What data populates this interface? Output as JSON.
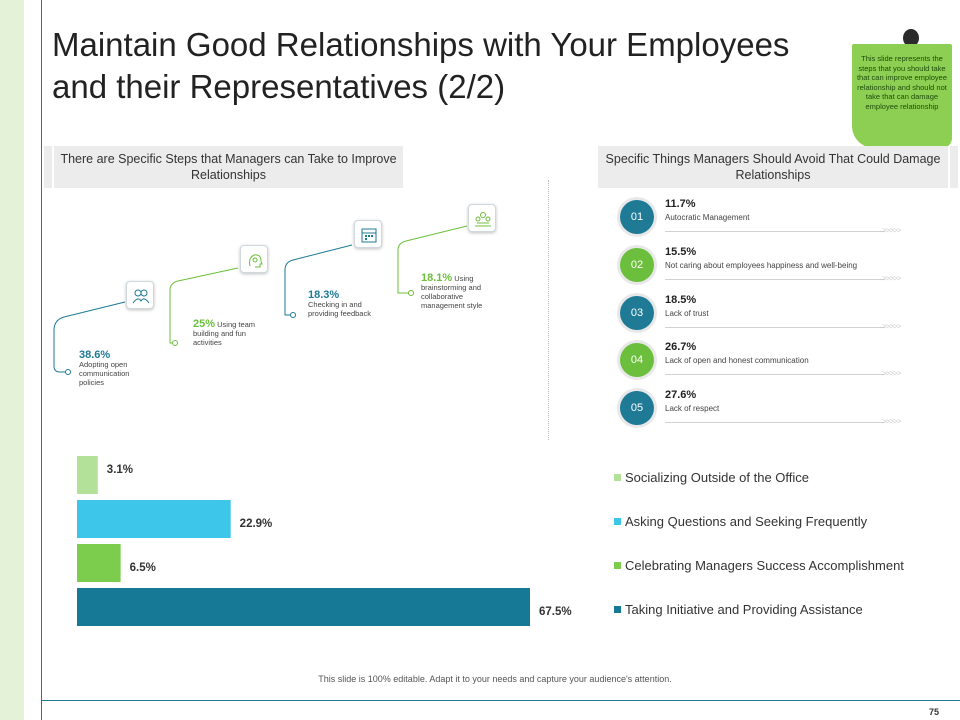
{
  "title": {
    "line1": "Maintain Good Relationships with Your Employees",
    "line2": "and their Representatives  (2/2)"
  },
  "note": {
    "text": "This slide represents the steps that you should take that can improve employee relationship and should not take that can damage employee relationship"
  },
  "left_panel": {
    "header": "There are Specific Steps that Managers can Take to Improve Relationships",
    "steps": [
      {
        "pct": "38.6%",
        "text": "Adopting open communication policies",
        "icon": "team-icon",
        "color": "#1e7a95"
      },
      {
        "pct": "25%",
        "text": "Using team building and fun activities",
        "icon": "puzzle-head-icon",
        "color": "#6cbf3c"
      },
      {
        "pct": "18.3%",
        "text": "Checking in and providing feedback",
        "icon": "calendar-icon",
        "color": "#1e7a95"
      },
      {
        "pct": "18.1%",
        "text": "Using brainstorming and collaborative management style",
        "icon": "group-meeting-icon",
        "color": "#6cbf3c"
      }
    ]
  },
  "right_panel": {
    "header": "Specific Things Managers Should Avoid That Could Damage Relationships",
    "items": [
      {
        "num": "01",
        "pct": "11.7%",
        "text": "Autocratic Management",
        "color": "#1e7a95"
      },
      {
        "num": "02",
        "pct": "15.5%",
        "text": "Not caring about employees happiness and well-being",
        "color": "#6cbf3c"
      },
      {
        "num": "03",
        "pct": "18.5%",
        "text": "Lack of trust",
        "color": "#1e7a95"
      },
      {
        "num": "04",
        "pct": "26.7%",
        "text": "Lack of open and honest communication",
        "color": "#6cbf3c"
      },
      {
        "num": "05",
        "pct": "27.6%",
        "text": "Lack of respect",
        "color": "#1e7a95"
      }
    ],
    "arrows": ">>>>>"
  },
  "chart_data": {
    "type": "bar",
    "orientation": "horizontal",
    "categories": [
      "Socializing Outside of the Office",
      "Asking Questions and Seeking Frequently",
      "Celebrating Managers Success Accomplishment",
      "Taking Initiative and Providing Assistance"
    ],
    "values": [
      3.1,
      22.9,
      6.5,
      67.5
    ],
    "value_labels": [
      "3.1%",
      "22.9%",
      "6.5%",
      "67.5%"
    ],
    "colors": [
      "#b4e199",
      "#3dc6ea",
      "#7ccc4e",
      "#167a96"
    ],
    "xlim": [
      0,
      67.5
    ],
    "legend": "right"
  },
  "footer": {
    "text": "This slide is 100% editable. Adapt it to your needs and capture your audience's attention.",
    "page_number": "75"
  }
}
